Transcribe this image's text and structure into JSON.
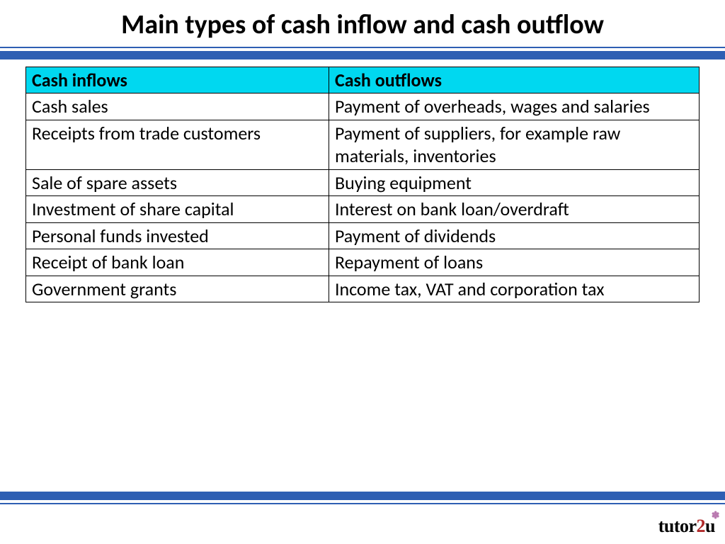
{
  "title": "Main types of cash inflow and cash outflow",
  "title_fontsize": 38,
  "rules": {
    "thin_color": "#2e5fb3",
    "thin_height": 2,
    "thick_color": "#2e5fb3",
    "thick_height": 12,
    "gap": 4
  },
  "table": {
    "header_bg": "#00d8f0",
    "header_text_color": "#000000",
    "cell_fontsize": 26,
    "border_color": "#000000",
    "columns": [
      "Cash inflows",
      "Cash outflows"
    ],
    "rows": [
      [
        "Cash sales",
        "Payment of overheads, wages and salaries"
      ],
      [
        "Receipts from trade customers",
        "Payment of suppliers, for example raw materials, inventories"
      ],
      [
        "Sale of spare assets",
        "Buying equipment"
      ],
      [
        "Investment of share capital",
        "Interest on bank loan/overdraft"
      ],
      [
        "Personal funds invested",
        "Payment of dividends"
      ],
      [
        "Receipt of bank loan",
        "Repayment of loans"
      ],
      [
        "Government grants",
        "Income tax, VAT and corporation tax"
      ]
    ]
  },
  "logo": {
    "prefix": "tutor",
    "mid": "2",
    "suffix": "u",
    "fontsize": 26,
    "flower_glyph": "✽"
  }
}
